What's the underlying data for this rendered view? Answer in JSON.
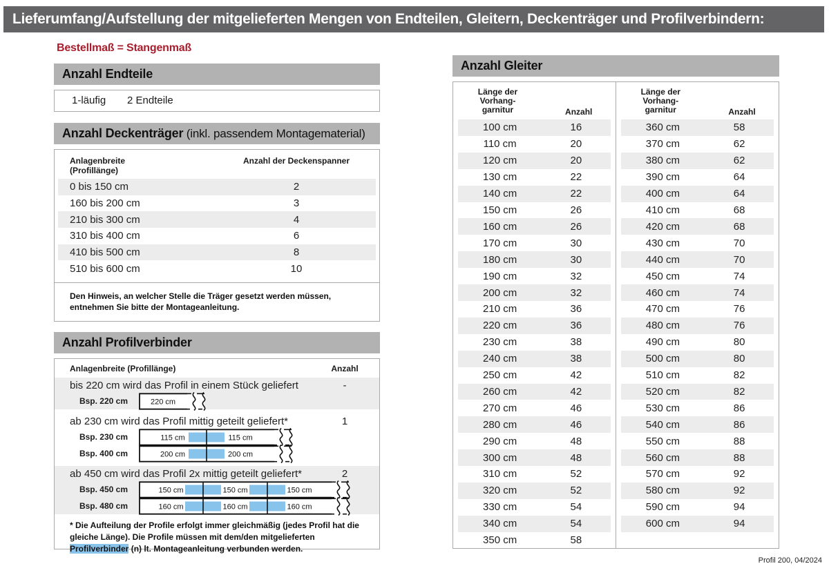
{
  "page": {
    "title": "Lieferumfang/Aufstellung der mitgelieferten Mengen von Endteilen, Gleitern, Deckenträger und Profilverbindern:",
    "subtitle": "Bestellmaß = Stangenmaß",
    "footer": "Profil 200, 04/2024"
  },
  "colors": {
    "title_bar_gray": "#646466",
    "section_bar_gray": "#b2b2b2",
    "row_stripe_gray": "#ececec",
    "accent_red": "#a81e2d",
    "connector_blue": "#87c3ea",
    "border_gray": "#a9a9a9"
  },
  "endteile": {
    "header": "Anzahl Endteile",
    "run_label": "1-läufig",
    "count_label": "2 Endteile"
  },
  "deckentraeger": {
    "header_bold": "Anzahl Deckenträger",
    "header_normal": " (inkl. passendem Montagematerial)",
    "col1_header_line1": "Anlagenbreite",
    "col1_header_line2": "(Profillänge)",
    "col2_header": "Anzahl der Deckenspanner",
    "rows": [
      {
        "range": "0 bis 150 cm",
        "count": "2"
      },
      {
        "range": "160 bis 200 cm",
        "count": "3"
      },
      {
        "range": "210 bis 300 cm",
        "count": "4"
      },
      {
        "range": "310 bis 400 cm",
        "count": "6"
      },
      {
        "range": "410 bis 500 cm",
        "count": "8"
      },
      {
        "range": "510 bis 600 cm",
        "count": "10"
      }
    ],
    "note": "Den Hinweis, an welcher Stelle die Träger gesetzt werden müssen, entnehmen Sie bitte der Montageanleitung."
  },
  "profilverbinder": {
    "header": "Anzahl Profilverbinder",
    "col1_header": "Anlagenbreite (Profillänge)",
    "col2_header": "Anzahl",
    "groups": [
      {
        "text": "bis 220 cm wird das Profil in einem Stück geliefert",
        "count": "-",
        "shade": true,
        "examples": [
          {
            "label": "Bsp. 220 cm",
            "segments": [
              "220 cm"
            ]
          }
        ]
      },
      {
        "text": "ab 230 cm wird das Profil mittig geteilt geliefert*",
        "count": "1",
        "shade": false,
        "examples": [
          {
            "label": "Bsp. 230 cm",
            "segments": [
              "115 cm",
              "115 cm"
            ]
          },
          {
            "label": "Bsp. 400 cm",
            "segments": [
              "200 cm",
              "200 cm"
            ]
          }
        ]
      },
      {
        "text": "ab 450 cm wird das Profil 2x mittig geteilt geliefert*",
        "count": "2",
        "shade": true,
        "examples": [
          {
            "label": "Bsp. 450 cm",
            "segments": [
              "150 cm",
              "150 cm",
              "150 cm"
            ]
          },
          {
            "label": "Bsp. 480 cm",
            "segments": [
              "160 cm",
              "160 cm",
              "160 cm"
            ]
          }
        ]
      }
    ],
    "footnote_pre": "* Die Aufteilung der Profile erfolgt immer gleichmäßig (jedes Profil hat die gleiche Länge). Die Profile müssen mit dem/den mitgelieferten ",
    "footnote_highlight": "Profilverbinder",
    "footnote_post": " (n) lt. Montageanleitung verbunden werden."
  },
  "gleiter": {
    "header": "Anzahl Gleiter",
    "col1_header_lines": [
      "Länge der",
      "Vorhang-",
      "garnitur"
    ],
    "col2_header": "Anzahl",
    "left_rows": [
      {
        "len": "100 cm",
        "count": "16"
      },
      {
        "len": "110 cm",
        "count": "20"
      },
      {
        "len": "120 cm",
        "count": "20"
      },
      {
        "len": "130 cm",
        "count": "22"
      },
      {
        "len": "140 cm",
        "count": "22"
      },
      {
        "len": "150 cm",
        "count": "26"
      },
      {
        "len": "160 cm",
        "count": "26"
      },
      {
        "len": "170 cm",
        "count": "30"
      },
      {
        "len": "180 cm",
        "count": "30"
      },
      {
        "len": "190 cm",
        "count": "32"
      },
      {
        "len": "200 cm",
        "count": "32"
      },
      {
        "len": "210 cm",
        "count": "36"
      },
      {
        "len": "220 cm",
        "count": "36"
      },
      {
        "len": "230 cm",
        "count": "38"
      },
      {
        "len": "240 cm",
        "count": "38"
      },
      {
        "len": "250 cm",
        "count": "42"
      },
      {
        "len": "260 cm",
        "count": "42"
      },
      {
        "len": "270 cm",
        "count": "46"
      },
      {
        "len": "280 cm",
        "count": "46"
      },
      {
        "len": "290 cm",
        "count": "48"
      },
      {
        "len": "300 cm",
        "count": "48"
      },
      {
        "len": "310 cm",
        "count": "52"
      },
      {
        "len": "320 cm",
        "count": "52"
      },
      {
        "len": "330 cm",
        "count": "54"
      },
      {
        "len": "340 cm",
        "count": "54"
      },
      {
        "len": "350 cm",
        "count": "58"
      }
    ],
    "right_rows": [
      {
        "len": "360 cm",
        "count": "58"
      },
      {
        "len": "370 cm",
        "count": "62"
      },
      {
        "len": "380 cm",
        "count": "62"
      },
      {
        "len": "390 cm",
        "count": "64"
      },
      {
        "len": "400 cm",
        "count": "64"
      },
      {
        "len": "410 cm",
        "count": "68"
      },
      {
        "len": "420 cm",
        "count": "68"
      },
      {
        "len": "430 cm",
        "count": "70"
      },
      {
        "len": "440 cm",
        "count": "70"
      },
      {
        "len": "450 cm",
        "count": "74"
      },
      {
        "len": "460 cm",
        "count": "74"
      },
      {
        "len": "470 cm",
        "count": "76"
      },
      {
        "len": "480 cm",
        "count": "76"
      },
      {
        "len": "490 cm",
        "count": "80"
      },
      {
        "len": "500 cm",
        "count": "80"
      },
      {
        "len": "510 cm",
        "count": "82"
      },
      {
        "len": "520 cm",
        "count": "82"
      },
      {
        "len": "530 cm",
        "count": "86"
      },
      {
        "len": "540 cm",
        "count": "86"
      },
      {
        "len": "550 cm",
        "count": "88"
      },
      {
        "len": "560 cm",
        "count": "88"
      },
      {
        "len": "570 cm",
        "count": "92"
      },
      {
        "len": "580 cm",
        "count": "92"
      },
      {
        "len": "590 cm",
        "count": "94"
      },
      {
        "len": "600 cm",
        "count": "94"
      }
    ]
  }
}
